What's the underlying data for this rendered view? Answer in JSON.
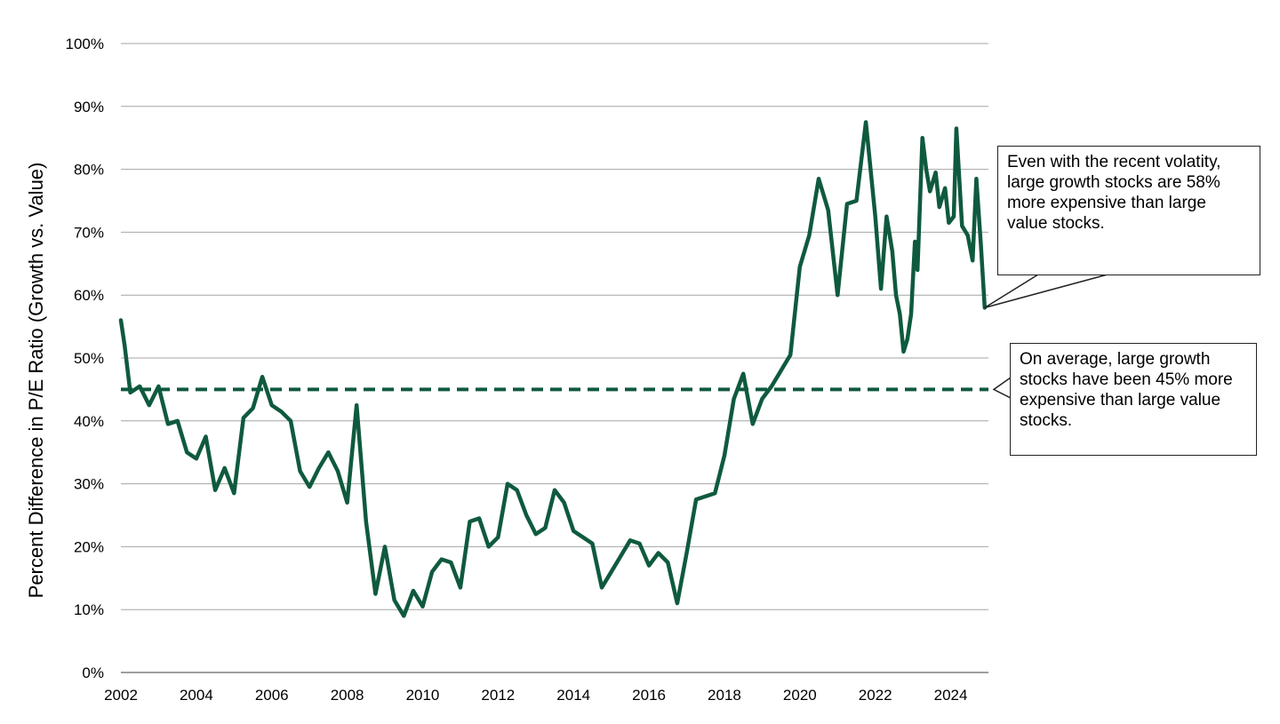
{
  "chart_data": {
    "type": "line",
    "title": "",
    "xlabel": "",
    "ylabel": "Percent Difference in P/E Ratio (Growth vs. Value)",
    "xlim": [
      2002,
      2025
    ],
    "ylim": [
      0,
      100
    ],
    "x_ticks": [
      "2002",
      "2004",
      "2006",
      "2008",
      "2010",
      "2012",
      "2014",
      "2016",
      "2018",
      "2020",
      "2022",
      "2024"
    ],
    "y_ticks": [
      "0%",
      "10%",
      "20%",
      "30%",
      "40%",
      "50%",
      "60%",
      "70%",
      "80%",
      "90%",
      "100%"
    ],
    "grid": "horizontal",
    "average_line": {
      "value": 45,
      "style": "dashed"
    },
    "series": [
      {
        "color": "#0f5a3e",
        "points": [
          [
            2002.0,
            56
          ],
          [
            2002.1,
            52
          ],
          [
            2002.25,
            44.5
          ],
          [
            2002.5,
            45.5
          ],
          [
            2002.75,
            42.5
          ],
          [
            2003.0,
            45.5
          ],
          [
            2003.25,
            39.5
          ],
          [
            2003.5,
            40
          ],
          [
            2003.75,
            35
          ],
          [
            2004.0,
            34
          ],
          [
            2004.25,
            37.5
          ],
          [
            2004.5,
            29
          ],
          [
            2004.75,
            32.5
          ],
          [
            2005.0,
            28.5
          ],
          [
            2005.25,
            40.5
          ],
          [
            2005.5,
            42
          ],
          [
            2005.75,
            47
          ],
          [
            2006.0,
            42.5
          ],
          [
            2006.25,
            41.5
          ],
          [
            2006.5,
            40
          ],
          [
            2006.75,
            32
          ],
          [
            2007.0,
            29.5
          ],
          [
            2007.25,
            32.5
          ],
          [
            2007.5,
            35
          ],
          [
            2007.75,
            32
          ],
          [
            2008.0,
            27
          ],
          [
            2008.25,
            42.5
          ],
          [
            2008.5,
            24
          ],
          [
            2008.75,
            12.5
          ],
          [
            2009.0,
            20
          ],
          [
            2009.25,
            11.5
          ],
          [
            2009.5,
            9
          ],
          [
            2009.75,
            13
          ],
          [
            2010.0,
            10.5
          ],
          [
            2010.25,
            16
          ],
          [
            2010.5,
            18
          ],
          [
            2010.75,
            17.5
          ],
          [
            2011.0,
            13.5
          ],
          [
            2011.25,
            24
          ],
          [
            2011.5,
            24.5
          ],
          [
            2011.75,
            20
          ],
          [
            2012.0,
            21.5
          ],
          [
            2012.25,
            30
          ],
          [
            2012.5,
            29
          ],
          [
            2012.75,
            25
          ],
          [
            2013.0,
            22
          ],
          [
            2013.25,
            23
          ],
          [
            2013.5,
            29
          ],
          [
            2013.75,
            27
          ],
          [
            2014.0,
            22.5
          ],
          [
            2014.25,
            21.5
          ],
          [
            2014.5,
            20.5
          ],
          [
            2014.75,
            13.5
          ],
          [
            2015.0,
            16
          ],
          [
            2015.25,
            18.5
          ],
          [
            2015.5,
            21
          ],
          [
            2015.75,
            20.5
          ],
          [
            2016.0,
            17
          ],
          [
            2016.25,
            19
          ],
          [
            2016.5,
            17.5
          ],
          [
            2016.75,
            11
          ],
          [
            2017.0,
            19
          ],
          [
            2017.25,
            27.5
          ],
          [
            2017.5,
            28
          ],
          [
            2017.75,
            28.5
          ],
          [
            2018.0,
            34.5
          ],
          [
            2018.25,
            43.5
          ],
          [
            2018.5,
            47.5
          ],
          [
            2018.75,
            39.5
          ],
          [
            2019.0,
            43.5
          ],
          [
            2019.25,
            45.5
          ],
          [
            2019.5,
            48
          ],
          [
            2019.75,
            50.5
          ],
          [
            2020.0,
            64.5
          ],
          [
            2020.25,
            69.5
          ],
          [
            2020.5,
            78.5
          ],
          [
            2020.75,
            73.5
          ],
          [
            2021.0,
            60
          ],
          [
            2021.25,
            74.5
          ],
          [
            2021.5,
            75
          ],
          [
            2021.75,
            87.5
          ],
          [
            2022.0,
            72.5
          ],
          [
            2022.15,
            61
          ],
          [
            2022.3,
            72.5
          ],
          [
            2022.45,
            67
          ],
          [
            2022.55,
            60
          ],
          [
            2022.65,
            57
          ],
          [
            2022.75,
            51
          ],
          [
            2022.85,
            53
          ],
          [
            2022.95,
            57
          ],
          [
            2023.05,
            68.5
          ],
          [
            2023.12,
            64
          ],
          [
            2023.25,
            85
          ],
          [
            2023.35,
            80
          ],
          [
            2023.45,
            76.5
          ],
          [
            2023.6,
            79.5
          ],
          [
            2023.7,
            74
          ],
          [
            2023.85,
            77
          ],
          [
            2023.95,
            71.5
          ],
          [
            2024.08,
            72.5
          ],
          [
            2024.15,
            86.5
          ],
          [
            2024.3,
            71
          ],
          [
            2024.45,
            69.5
          ],
          [
            2024.58,
            65.5
          ],
          [
            2024.68,
            78.5
          ],
          [
            2024.8,
            68
          ],
          [
            2024.9,
            58
          ]
        ]
      }
    ],
    "annotations": [
      {
        "id": "recent",
        "text": "Even with the recent volatity, large growth stocks are 58% more expensive than large value stocks.",
        "points_to": [
          2024.9,
          58
        ]
      },
      {
        "id": "average",
        "text": "On average, large growth stocks have been 45% more expensive than large value stocks.",
        "points_to": [
          2025,
          45
        ]
      }
    ]
  },
  "colors": {
    "line": "#0f5a3e",
    "grid": "#a6a6a6",
    "axis": "#7f7f7f"
  }
}
